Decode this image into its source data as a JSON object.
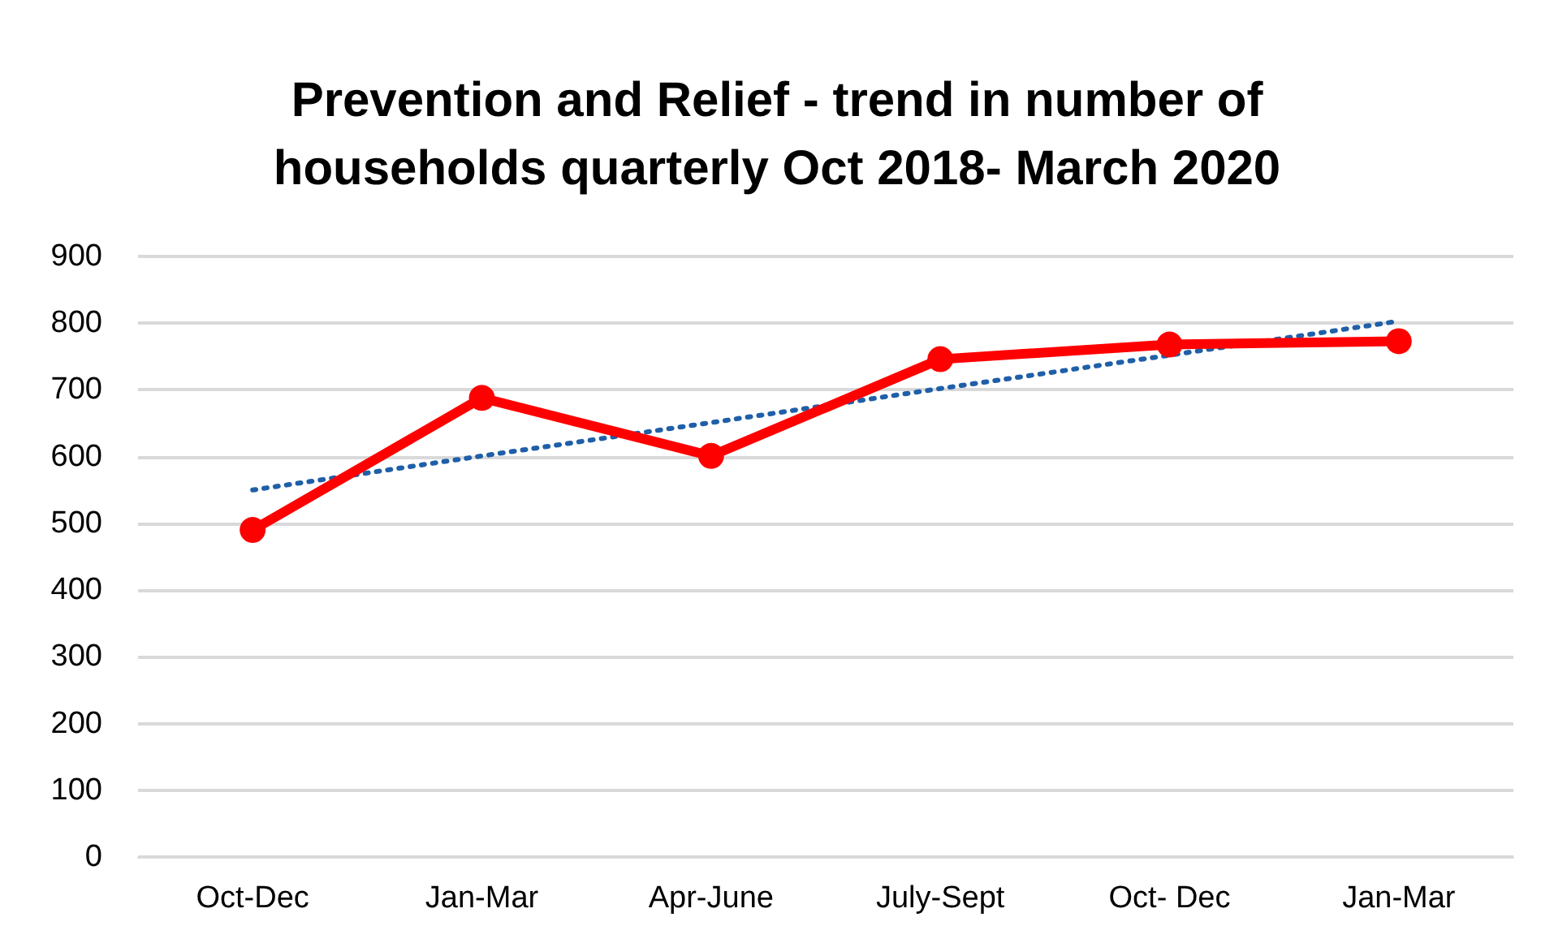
{
  "chart_data": {
    "type": "line",
    "title": "Prevention and Relief - trend in number of\nhouseholds quarterly Oct 2018- March 2020",
    "categories": [
      "Oct-Dec",
      "Jan-Mar",
      "Apr-June",
      "July-Sept",
      "Oct- Dec",
      "Jan-Mar"
    ],
    "series": [
      {
        "color": "#ff0000",
        "values": [
          490,
          688,
          601,
          746,
          768,
          773
        ],
        "marker": "circle",
        "line_style": "solid"
      },
      {
        "color": "#1f5fa8",
        "values": [
          550,
          601,
          651,
          702,
          752,
          803
        ],
        "marker": "none",
        "line_style": "dotted"
      }
    ],
    "ylim": [
      0,
      900
    ],
    "yticks": [
      0,
      100,
      200,
      300,
      400,
      500,
      600,
      700,
      800,
      900
    ],
    "grid": "y"
  }
}
